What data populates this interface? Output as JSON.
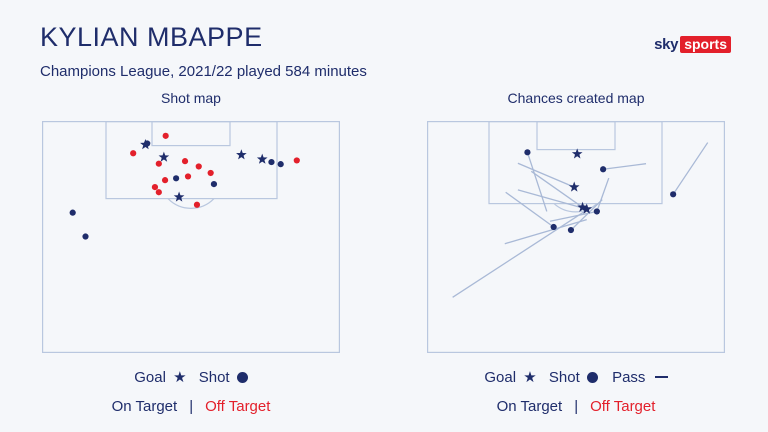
{
  "header": {
    "title": "KYLIAN MBAPPE",
    "subtitle": "Champions League, 2021/22 played 584 minutes",
    "logo_sky": "sky",
    "logo_sports": "sports"
  },
  "colors": {
    "on_target": "#1f2d6b",
    "off_target": "#e3202b",
    "pass_line": "#a9b9d6",
    "pitch_line": "#b9c7df"
  },
  "panels": {
    "shot_map_title": "Shot map",
    "chances_map_title": "Chances created map"
  },
  "legend": {
    "goal": "Goal",
    "shot": "Shot",
    "pass": "Pass",
    "goal_symbol": "★",
    "on_target": "On Target",
    "separator": "|",
    "off_target": "Off Target"
  },
  "chart_data": [
    {
      "type": "scatter",
      "title": "Shot map",
      "x_range": [
        0,
        100
      ],
      "y_range": [
        0,
        100
      ],
      "series": [
        {
          "name": "On Target",
          "points": [
            {
              "x": 34.7,
              "y": 10.2,
              "marker": "goal"
            },
            {
              "x": 40.9,
              "y": 15.6,
              "marker": "goal"
            },
            {
              "x": 66.9,
              "y": 14.6,
              "marker": "goal"
            },
            {
              "x": 73.9,
              "y": 16.5,
              "marker": "goal"
            },
            {
              "x": 46.0,
              "y": 32.8,
              "marker": "goal"
            },
            {
              "x": 35.3,
              "y": 9.7,
              "marker": "shot"
            },
            {
              "x": 77.0,
              "y": 17.7,
              "marker": "shot"
            },
            {
              "x": 80.1,
              "y": 18.6,
              "marker": "shot"
            },
            {
              "x": 45.0,
              "y": 24.7,
              "marker": "shot"
            },
            {
              "x": 57.7,
              "y": 27.2,
              "marker": "shot"
            },
            {
              "x": 10.3,
              "y": 39.5,
              "marker": "shot"
            },
            {
              "x": 14.6,
              "y": 49.8,
              "marker": "shot"
            }
          ]
        },
        {
          "name": "Off Target",
          "points": [
            {
              "x": 41.5,
              "y": 6.4,
              "marker": "shot"
            },
            {
              "x": 30.6,
              "y": 13.9,
              "marker": "shot"
            },
            {
              "x": 48.0,
              "y": 17.3,
              "marker": "shot"
            },
            {
              "x": 39.2,
              "y": 18.4,
              "marker": "shot"
            },
            {
              "x": 52.6,
              "y": 19.6,
              "marker": "shot"
            },
            {
              "x": 85.5,
              "y": 17.0,
              "marker": "shot"
            },
            {
              "x": 56.6,
              "y": 22.4,
              "marker": "shot"
            },
            {
              "x": 41.3,
              "y": 25.5,
              "marker": "shot"
            },
            {
              "x": 49.0,
              "y": 23.9,
              "marker": "shot"
            },
            {
              "x": 37.9,
              "y": 28.5,
              "marker": "shot"
            },
            {
              "x": 39.2,
              "y": 30.7,
              "marker": "shot"
            },
            {
              "x": 52.0,
              "y": 36.1,
              "marker": "shot"
            }
          ]
        }
      ]
    },
    {
      "type": "scatter",
      "title": "Chances created map",
      "x_range": [
        0,
        100
      ],
      "y_range": [
        0,
        100
      ],
      "series": [
        {
          "name": "On Target",
          "points": [
            {
              "x": 33.7,
              "y": 13.5,
              "marker": "shot",
              "pass_from": {
                "x": 40.2,
                "y": 39.0
              }
            },
            {
              "x": 50.4,
              "y": 14.2,
              "marker": "goal"
            },
            {
              "x": 59.1,
              "y": 20.8,
              "marker": "shot",
              "pass_from": {
                "x": 73.5,
                "y": 18.4
              }
            },
            {
              "x": 49.4,
              "y": 28.5,
              "marker": "goal",
              "pass_from": {
                "x": 30.5,
                "y": 18.2
              }
            },
            {
              "x": 82.6,
              "y": 31.6,
              "marker": "shot",
              "pass_from": {
                "x": 94.2,
                "y": 9.3
              }
            },
            {
              "x": 52.2,
              "y": 37.2,
              "marker": "goal",
              "pass_from": {
                "x": 35.0,
                "y": 21.7
              }
            },
            {
              "x": 53.6,
              "y": 38.0,
              "marker": "goal",
              "pass_from": {
                "x": 30.5,
                "y": 29.7
              }
            },
            {
              "x": 57.0,
              "y": 39.0,
              "marker": "shot",
              "pass_from": {
                "x": 61.0,
                "y": 24.6
              }
            },
            {
              "x": 42.5,
              "y": 45.7,
              "marker": "shot",
              "pass_from": {
                "x": 26.4,
                "y": 30.7
              }
            },
            {
              "x": 48.3,
              "y": 47.0,
              "marker": "shot",
              "pass_from": {
                "x": 58.8,
                "y": 33.9
              }
            },
            {
              "x": 57.0,
              "y": 39.0,
              "marker": "pass",
              "pass_from": {
                "x": 41.3,
                "y": 43.2
              }
            },
            {
              "x": 53.6,
              "y": 42.5,
              "marker": "pass",
              "pass_from": {
                "x": 26.1,
                "y": 52.9
              }
            },
            {
              "x": 55.0,
              "y": 37.2,
              "marker": "pass",
              "pass_from": {
                "x": 8.6,
                "y": 76.0
              }
            }
          ]
        }
      ]
    }
  ]
}
